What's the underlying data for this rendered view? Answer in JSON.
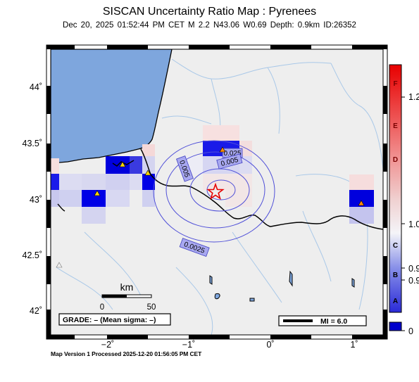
{
  "title": "SISCAN Uncertainty Ratio Map : Pyrenees",
  "subtitle": "Dec 20, 2025 01:52:44 PM CET   M 2.2   N43.06 W0.69   Depth: 0.9km   ID:26352",
  "footer": "Map Version 1 Processed 2025-12-20 01:56:05 PM CET",
  "map": {
    "lon_range": [
      -2.7,
      1.35
    ],
    "lat_range": [
      41.82,
      44.35
    ],
    "x_ticks": [
      {
        "value": -2,
        "label": "−2˚"
      },
      {
        "value": -1,
        "label": "−1˚"
      },
      {
        "value": 0,
        "label": "0˚"
      },
      {
        "value": 1,
        "label": "1˚"
      }
    ],
    "y_ticks": [
      {
        "value": 44,
        "label": "44˚"
      },
      {
        "value": 43.5,
        "label": "43.5˚"
      },
      {
        "value": 43,
        "label": "43˚"
      },
      {
        "value": 42.5,
        "label": "42.5˚"
      },
      {
        "value": 42,
        "label": "42˚"
      }
    ],
    "epicenter": {
      "lon": -0.69,
      "lat": 43.06
    },
    "contour_labels": [
      "0.025",
      "0.005",
      "0.005",
      "0.0025"
    ],
    "colors": {
      "sea": "#7ea6dd",
      "land": "#eeeeee",
      "high": "#0000dd",
      "low": "#f3d6d6",
      "star": "#e60000"
    }
  },
  "scale_bar": {
    "unit": "km",
    "ticks": [
      "0",
      "50"
    ]
  },
  "grade_box": "GRADE: – (Mean sigma: –)",
  "mi_box": "MI = 6.0",
  "colorbar": {
    "letters": [
      "F",
      "E",
      "D",
      "C",
      "B",
      "A"
    ],
    "values": [
      "1.2",
      "1.0",
      "0.9",
      "0.9",
      "0"
    ]
  }
}
